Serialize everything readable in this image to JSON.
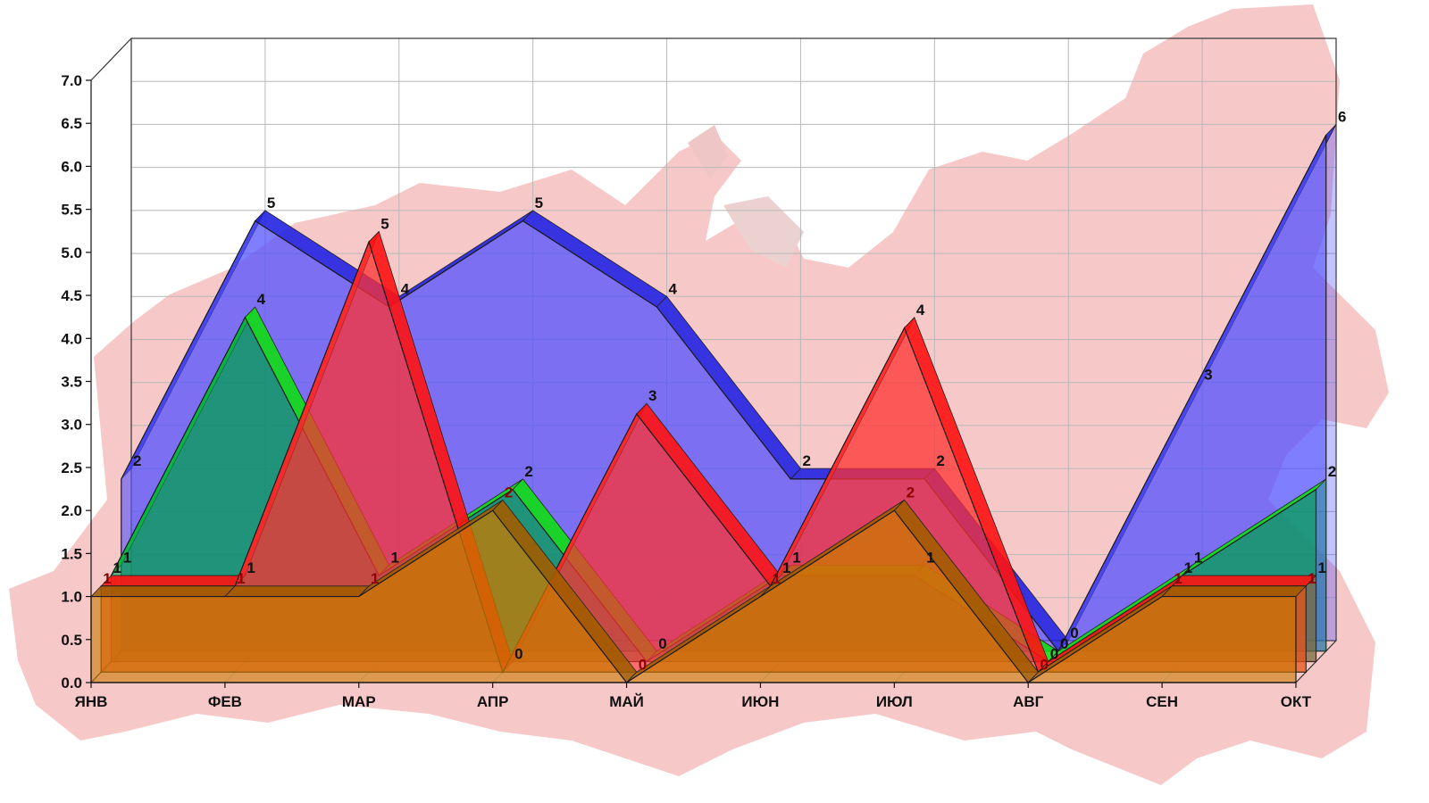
{
  "chart_data": {
    "type": "area",
    "render": "3d-depth",
    "categories": [
      "ЯНВ",
      "ФЕВ",
      "МАР",
      "АПР",
      "МАЙ",
      "ИЮН",
      "ИЮЛ",
      "АВГ",
      "СЕН",
      "ОКТ"
    ],
    "y_ticks": [
      "0.0",
      "0.5",
      "1.0",
      "1.5",
      "2.0",
      "2.5",
      "3.0",
      "3.5",
      "4.0",
      "4.5",
      "5.0",
      "5.5",
      "6.0",
      "6.5",
      "7.0"
    ],
    "ylim": [
      0,
      7
    ],
    "grid": true,
    "background_image": "map-silhouette",
    "series": [
      {
        "values": [
          2,
          5,
          4,
          5,
          4,
          2,
          2,
          0,
          3,
          6
        ],
        "labels": [
          "2",
          "5",
          "4",
          "5",
          "4",
          "2",
          "2",
          "0",
          "3",
          "6"
        ],
        "color": "#5050ff",
        "edge": "#2020e0",
        "label_color": "#111111"
      },
      {
        "values": [
          1,
          4,
          1,
          2,
          0,
          1,
          1,
          0,
          1,
          2
        ],
        "labels": [
          "1",
          "4",
          "1",
          "2",
          "0",
          "1",
          "1",
          "0",
          "1",
          "2"
        ],
        "color": "#00a050",
        "edge": "#10e010",
        "label_color": "#111111"
      },
      {
        "values": [
          1,
          1,
          5,
          0,
          3,
          1,
          4,
          0,
          1,
          1
        ],
        "labels": [
          "1",
          "1",
          "5",
          "0",
          "3",
          "1",
          "4",
          "0",
          "1",
          "1"
        ],
        "color": "#ff3030",
        "edge": "#ff1010",
        "label_color": "#111111"
      },
      {
        "values": [
          1,
          1,
          1,
          2,
          0,
          1,
          2,
          0,
          1,
          1
        ],
        "labels": [
          "1",
          "1",
          "1",
          "2",
          "0",
          "1",
          "2",
          "0",
          "1",
          "1"
        ],
        "color": "#cc7a00",
        "edge": "#a05a00",
        "label_color": "#8b0000"
      }
    ]
  }
}
